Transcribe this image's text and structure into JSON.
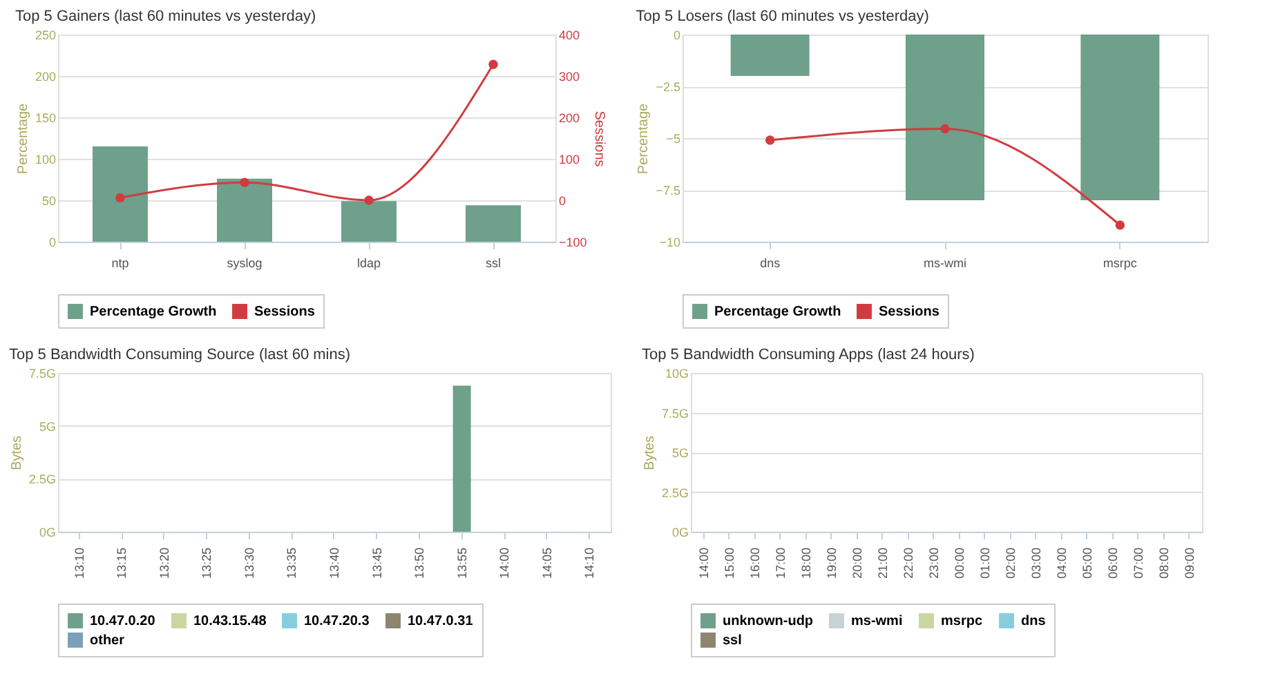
{
  "chart_data": [
    {
      "type": "bar",
      "title": "Top 5 Gainers (last 60 minutes vs yesterday)",
      "ylabel": "Percentage",
      "y2label": "Sessions",
      "categories": [
        "ntp",
        "syslog",
        "ldap",
        "ssl"
      ],
      "series": [
        {
          "name": "Percentage Growth",
          "color": "#6fa08b",
          "values": [
            115,
            76,
            49,
            44
          ]
        },
        {
          "name": "Sessions",
          "type": "line",
          "axis": "y2",
          "color": "#d13b40",
          "values": [
            6,
            43,
            0,
            328
          ]
        }
      ],
      "ylim": [
        0,
        250
      ],
      "yticks": [
        0,
        50,
        100,
        150,
        200,
        250
      ],
      "y2lim": [
        -100,
        400
      ],
      "y2ticks": [
        -100,
        0,
        100,
        200,
        300,
        400
      ],
      "grid": "y",
      "legend": "bottom",
      "marker": "circle"
    },
    {
      "type": "bar",
      "title": "Top 5 Losers (last 60 minutes vs yesterday)",
      "ylabel": "Percentage",
      "categories": [
        "dns",
        "ms-wmi",
        "msrpc"
      ],
      "series": [
        {
          "name": "Percentage Growth",
          "color": "#6fa08b",
          "values": [
            -2,
            -8,
            -8
          ]
        },
        {
          "name": "Sessions",
          "type": "line",
          "color": "#d13b40",
          "values": [
            -5.1,
            -4.55,
            -9.2
          ]
        }
      ],
      "ylim": [
        -10,
        0
      ],
      "yticks": [
        -10,
        -7.5,
        -5,
        -2.5,
        0
      ],
      "grid": "y",
      "legend": "bottom",
      "marker": "circle"
    },
    {
      "type": "bar",
      "stacked": true,
      "title": "Top 5 Bandwidth Consuming Source (last 60 mins)",
      "ylabel": "Bytes",
      "categories": [
        "13:10",
        "13:15",
        "13:20",
        "13:25",
        "13:30",
        "13:35",
        "13:40",
        "13:45",
        "13:50",
        "13:55",
        "14:00",
        "14:05",
        "14:10"
      ],
      "series": [
        {
          "name": "10.47.0.20",
          "color": "#6fa08b",
          "values": [
            0,
            0,
            0,
            0,
            0,
            0,
            0,
            0,
            0,
            6.9,
            0,
            0,
            0
          ]
        },
        {
          "color": "#c5d3d3",
          "values": [
            0,
            0,
            0,
            0,
            0,
            0,
            0,
            0,
            0,
            0,
            0,
            0,
            0
          ]
        },
        {
          "name": "10.43.15.48",
          "color": "#c8d6a0",
          "values": [
            0,
            0,
            0,
            0,
            0,
            0,
            0,
            0,
            0,
            0,
            0,
            0,
            0
          ]
        },
        {
          "name": "10.47.20.3",
          "color": "#86cedd",
          "values": [
            0,
            0,
            0,
            0,
            0,
            0,
            0,
            0,
            0,
            0,
            0,
            0,
            0
          ]
        },
        {
          "name": "10.47.0.31",
          "color": "#8e8470",
          "values": [
            0,
            0,
            0,
            0,
            0,
            0,
            0,
            0,
            0,
            0,
            0,
            0,
            0
          ]
        },
        {
          "name": "other",
          "color": "#7b9fb7",
          "values": [
            0,
            0,
            0,
            0,
            0,
            0,
            0,
            0,
            0,
            0,
            0,
            0,
            0
          ]
        }
      ],
      "ylim": [
        0,
        7.5
      ],
      "yticks": [
        {
          "value": 0,
          "label": "0G"
        },
        {
          "value": 2.5,
          "label": "2.5G"
        },
        {
          "value": 5,
          "label": "5G"
        },
        {
          "value": 7.5,
          "label": "7.5G"
        }
      ],
      "grid": "y",
      "legend": "bottom"
    },
    {
      "type": "bar",
      "stacked": true,
      "title": "Top 5 Bandwidth Consuming Apps (last 24 hours)",
      "ylabel": "Bytes",
      "categories": [
        "14:00",
        "15:00",
        "16:00",
        "17:00",
        "18:00",
        "19:00",
        "20:00",
        "21:00",
        "22:00",
        "23:00",
        "00:00",
        "01:00",
        "02:00",
        "03:00",
        "04:00",
        "05:00",
        "06:00",
        "07:00",
        "08:00",
        "09:00"
      ],
      "series": [
        {
          "name": "unknown-udp",
          "color": "#6fa08b",
          "values": [
            0,
            0,
            0,
            0,
            0,
            0,
            0,
            0,
            0,
            0,
            0,
            0,
            0,
            0,
            0,
            0,
            0,
            0,
            0,
            0
          ]
        },
        {
          "name": "ms-wmi",
          "color": "#c5d3d3",
          "values": [
            0,
            0,
            0,
            0,
            0,
            0,
            0,
            0,
            0,
            0,
            0,
            0,
            0,
            0,
            0,
            0,
            0,
            0,
            0,
            0
          ]
        },
        {
          "name": "msrpc",
          "color": "#c8d6a0",
          "values": [
            0,
            0,
            0,
            0,
            0,
            0,
            0,
            0,
            0,
            0,
            0,
            0,
            0,
            0,
            0,
            0,
            0,
            0,
            0,
            0
          ]
        },
        {
          "name": "dns",
          "color": "#86cedd",
          "values": [
            0,
            0,
            0,
            0,
            0,
            0,
            0,
            0,
            0,
            0,
            0,
            0,
            0,
            0,
            0,
            0,
            0,
            0,
            0,
            0
          ]
        },
        {
          "name": "ssl",
          "color": "#8e8470",
          "values": [
            0,
            0,
            0,
            0,
            0,
            0,
            0,
            0,
            0,
            0,
            0,
            0,
            0,
            0,
            0,
            0,
            0,
            0,
            0,
            0
          ]
        },
        {
          "color": "#7b9fb7",
          "values": [
            0,
            0,
            0,
            0,
            0,
            0,
            0,
            0,
            0,
            0,
            0,
            0,
            0,
            0,
            0,
            0,
            0,
            0,
            0,
            0
          ]
        }
      ],
      "ylim": [
        0,
        10
      ],
      "yticks": [
        {
          "value": 0,
          "label": "0G"
        },
        {
          "value": 2.5,
          "label": "2.5G"
        },
        {
          "value": 5,
          "label": "5G"
        },
        {
          "value": 7.5,
          "label": "7.5G"
        },
        {
          "value": 10,
          "label": "10G"
        }
      ],
      "grid": "y",
      "legend": "bottom"
    }
  ]
}
